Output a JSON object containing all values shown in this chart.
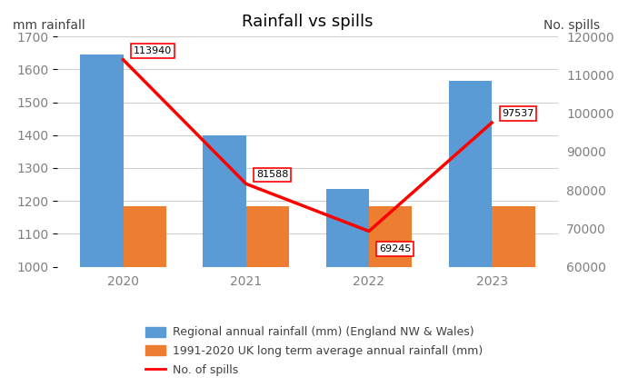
{
  "title": "Rainfall vs spills",
  "years": [
    2020,
    2021,
    2022,
    2023
  ],
  "rainfall_regional": [
    1645,
    1400,
    1235,
    1565
  ],
  "rainfall_average": [
    1185,
    1185,
    1185,
    1185
  ],
  "spills": [
    113940,
    81588,
    69245,
    97537
  ],
  "bar_color_regional": "#5B9BD5",
  "bar_color_average": "#ED7D31",
  "line_color": "#FF0000",
  "ylim_left": [
    1000,
    1700
  ],
  "ylim_right": [
    60000,
    120000
  ],
  "ylabel_left": "mm rainfall",
  "ylabel_right": "No. spills",
  "spill_labels": [
    "113940",
    "81588",
    "69245",
    "97537"
  ],
  "legend_labels": [
    "Regional annual rainfall (mm) (England NW & Wales)",
    "1991-2020 UK long term average annual rainfall (mm)",
    "No. of spills"
  ],
  "tick_color": "#808080",
  "label_color": "#404040",
  "grid_color": "#D0D0D0"
}
